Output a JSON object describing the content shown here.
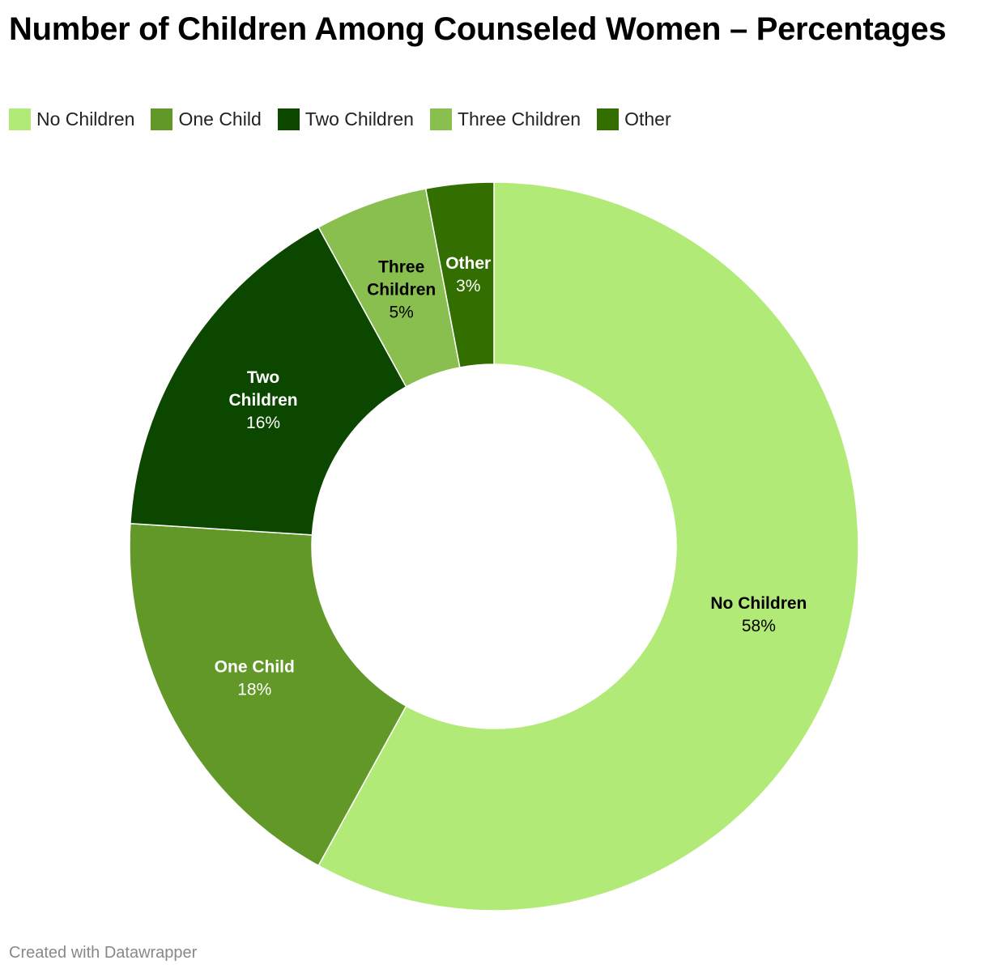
{
  "title": "Number of Children Among Counseled Women – Percentages",
  "credit": "Created with Datawrapper",
  "legend": [
    {
      "label": "No Children",
      "color": "#b2ea77"
    },
    {
      "label": "One Child",
      "color": "#619827"
    },
    {
      "label": "Two Children",
      "color": "#0c4700"
    },
    {
      "label": "Three Children",
      "color": "#89bf4f"
    },
    {
      "label": "Other",
      "color": "#336e00"
    }
  ],
  "chart_data": {
    "type": "pie",
    "variant": "donut",
    "title": "Number of Children Among Counseled Women – Percentages",
    "unit": "%",
    "slices": [
      {
        "label": "No Children",
        "value": 58,
        "display_lines": [
          "No Children"
        ],
        "display_value": "58%",
        "color": "#b2ea77",
        "text_color": "#000000"
      },
      {
        "label": "One Child",
        "value": 18,
        "display_lines": [
          "One Child"
        ],
        "display_value": "18%",
        "color": "#619827",
        "text_color": "#ffffff"
      },
      {
        "label": "Two Children",
        "value": 16,
        "display_lines": [
          "Two",
          "Children"
        ],
        "display_value": "16%",
        "color": "#0c4700",
        "text_color": "#ffffff"
      },
      {
        "label": "Three Children",
        "value": 5,
        "display_lines": [
          "Three",
          "Children"
        ],
        "display_value": "5%",
        "color": "#89bf4f",
        "text_color": "#000000"
      },
      {
        "label": "Other",
        "value": 3,
        "display_lines": [
          "Other"
        ],
        "display_value": "3%",
        "color": "#336e00",
        "text_color": "#ffffff"
      }
    ],
    "legend_position": "top-left"
  }
}
